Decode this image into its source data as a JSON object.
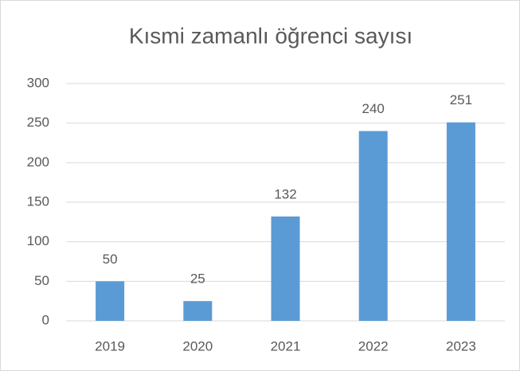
{
  "chart_data": {
    "type": "bar",
    "title": "Kısmi zamanlı öğrenci sayısı",
    "categories": [
      "2019",
      "2020",
      "2021",
      "2022",
      "2023"
    ],
    "values": [
      50,
      25,
      132,
      240,
      251
    ],
    "color": "#5b9bd5",
    "ylim": [
      0,
      300
    ],
    "yticks": [
      0,
      50,
      100,
      150,
      200,
      250,
      300
    ],
    "grid": true,
    "data_labels": true
  }
}
